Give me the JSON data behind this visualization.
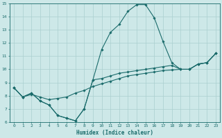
{
  "title": "",
  "xlabel": "Humidex (Indice chaleur)",
  "ylabel": "",
  "bg_color": "#cde8e8",
  "line_color": "#1a6b6b",
  "grid_color": "#aacfcf",
  "xlim": [
    -0.5,
    23.5
  ],
  "ylim": [
    6,
    15
  ],
  "xticks": [
    0,
    1,
    2,
    3,
    4,
    5,
    6,
    7,
    8,
    9,
    10,
    11,
    12,
    13,
    14,
    15,
    16,
    17,
    18,
    19,
    20,
    21,
    22,
    23
  ],
  "yticks": [
    6,
    7,
    8,
    9,
    10,
    11,
    12,
    13,
    14,
    15
  ],
  "line1_x": [
    0,
    1,
    2,
    3,
    4,
    5,
    6,
    7,
    8,
    9,
    10,
    11,
    12,
    13,
    14,
    15,
    16,
    17,
    18,
    19,
    20,
    21,
    22,
    23
  ],
  "line1_y": [
    8.6,
    7.9,
    8.2,
    7.6,
    7.3,
    6.5,
    6.3,
    6.1,
    7.0,
    9.2,
    9.3,
    9.5,
    9.7,
    9.8,
    9.9,
    10.0,
    10.1,
    10.2,
    10.3,
    10.0,
    10.0,
    10.4,
    10.5,
    11.2
  ],
  "line2_x": [
    0,
    1,
    2,
    3,
    4,
    5,
    6,
    7,
    8,
    9,
    10,
    11,
    12,
    13,
    14,
    15,
    16,
    17,
    18,
    19,
    20,
    21,
    22,
    23
  ],
  "line2_y": [
    8.6,
    7.9,
    8.2,
    7.6,
    7.3,
    6.5,
    6.3,
    6.1,
    7.0,
    9.2,
    11.5,
    12.8,
    13.4,
    14.4,
    14.9,
    14.9,
    13.9,
    12.1,
    10.5,
    10.0,
    10.0,
    10.4,
    10.5,
    11.2
  ],
  "line3_x": [
    0,
    1,
    2,
    3,
    4,
    5,
    6,
    7,
    8,
    9,
    10,
    11,
    12,
    13,
    14,
    15,
    16,
    17,
    18,
    19,
    20,
    21,
    22,
    23
  ],
  "line3_y": [
    8.6,
    7.9,
    8.1,
    7.9,
    7.7,
    7.8,
    7.9,
    8.2,
    8.4,
    8.7,
    8.9,
    9.1,
    9.3,
    9.5,
    9.6,
    9.7,
    9.8,
    9.9,
    9.95,
    10.0,
    10.0,
    10.4,
    10.5,
    11.2
  ],
  "tick_fontsize": 4.5,
  "xlabel_fontsize": 5.5,
  "marker_size": 1.8,
  "linewidth": 0.8
}
